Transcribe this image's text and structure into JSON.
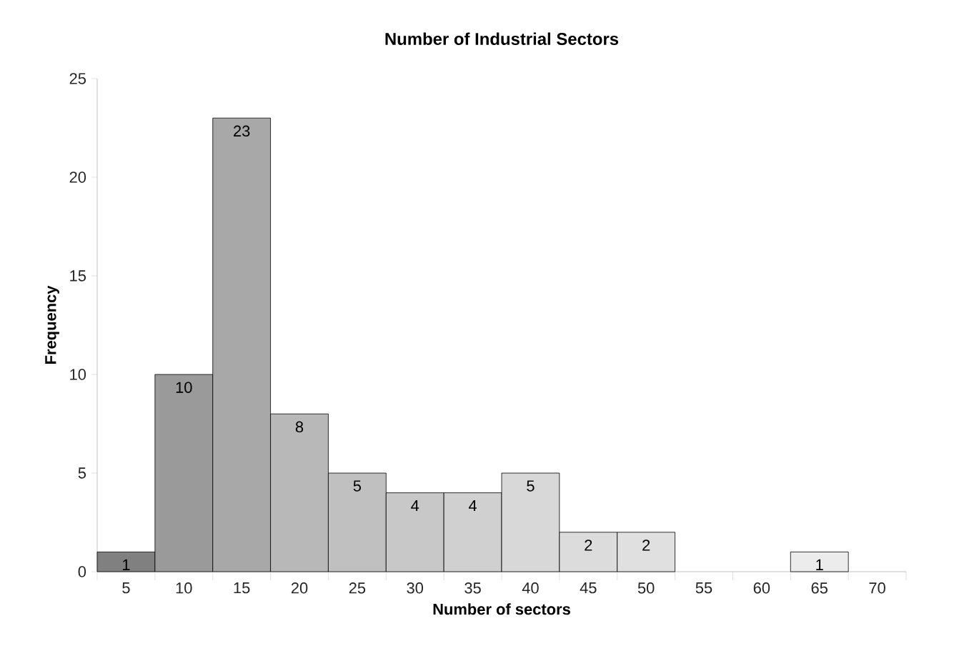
{
  "chart_data": {
    "type": "bar",
    "title": "Number of Industrial Sectors",
    "xlabel": "Number of sectors",
    "ylabel": "Frequency",
    "categories": [
      "5",
      "10",
      "15",
      "20",
      "25",
      "30",
      "35",
      "40",
      "45",
      "50",
      "55",
      "60",
      "65",
      "70"
    ],
    "values": [
      1,
      10,
      23,
      8,
      5,
      4,
      4,
      5,
      2,
      2,
      null,
      null,
      1,
      null
    ],
    "colors": [
      "#808080",
      "#9a9a9a",
      "#a8a8a8",
      "#b8b8b8",
      "#c0c0c0",
      "#c8c8c8",
      "#d0d0d0",
      "#d8d8d8",
      "#dcdcdc",
      "#e0e0e0",
      null,
      null,
      "#ececec",
      null
    ],
    "ylim": [
      0,
      25
    ],
    "yticks": [
      0,
      5,
      10,
      15,
      20,
      25
    ],
    "data_labels": true,
    "grid": false
  }
}
